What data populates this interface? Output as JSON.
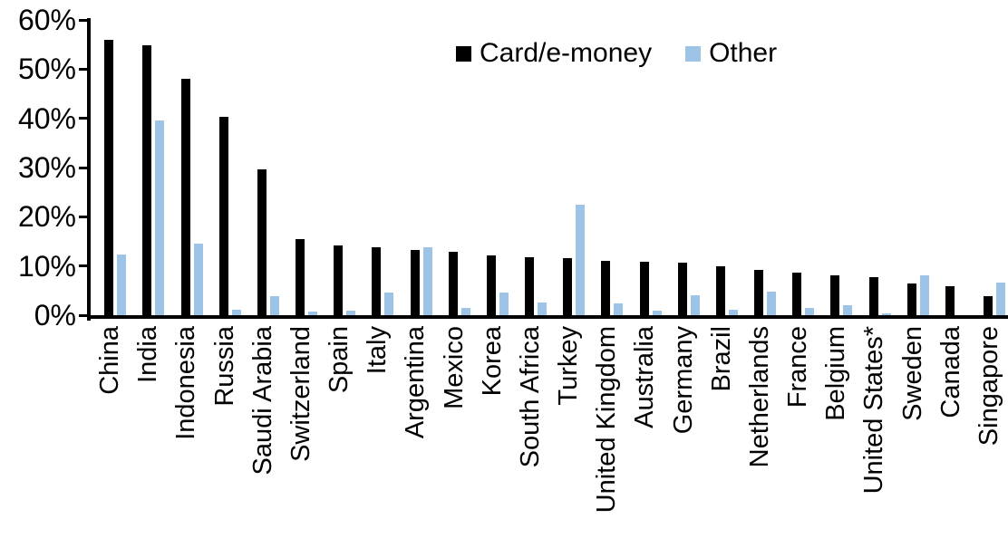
{
  "chart_data": {
    "type": "bar",
    "title": "",
    "xlabel": "",
    "ylabel": "",
    "ylim": [
      0,
      60
    ],
    "grid": false,
    "legend_position": "top-center",
    "ytick_labels": [
      "60%",
      "50%",
      "40%",
      "30%",
      "20%",
      "10%",
      "0%"
    ],
    "ytick_values": [
      60,
      50,
      40,
      30,
      20,
      10,
      0
    ],
    "categories": [
      "China",
      "India",
      "Indonesia",
      "Russia",
      "Saudi Arabia",
      "Switzerland",
      "Spain",
      "Italy",
      "Argentina",
      "Mexico",
      "Korea",
      "South Africa",
      "Turkey",
      "United Kingdom",
      "Australia",
      "Germany",
      "Brazil",
      "Netherlands",
      "France",
      "Belgium",
      "United States*",
      "Sweden",
      "Canada",
      "Singapore"
    ],
    "series": [
      {
        "name": "Card/e-money",
        "color": "#000000",
        "values": [
          56.0,
          54.9,
          48.1,
          40.3,
          29.7,
          15.5,
          14.1,
          13.9,
          13.3,
          12.9,
          12.2,
          11.8,
          11.6,
          11.0,
          10.8,
          10.6,
          9.9,
          9.2,
          8.6,
          8.1,
          7.8,
          6.5,
          5.9,
          3.9
        ]
      },
      {
        "name": "Other",
        "color": "#9DC3E6",
        "values": [
          12.3,
          39.6,
          14.5,
          1.1,
          3.9,
          0.8,
          1.0,
          4.6,
          13.8,
          1.4,
          4.6,
          2.5,
          22.5,
          2.4,
          1.0,
          4.0,
          1.1,
          4.8,
          1.5,
          2.1,
          0.3,
          8.1,
          0.0,
          6.6
        ]
      }
    ]
  }
}
